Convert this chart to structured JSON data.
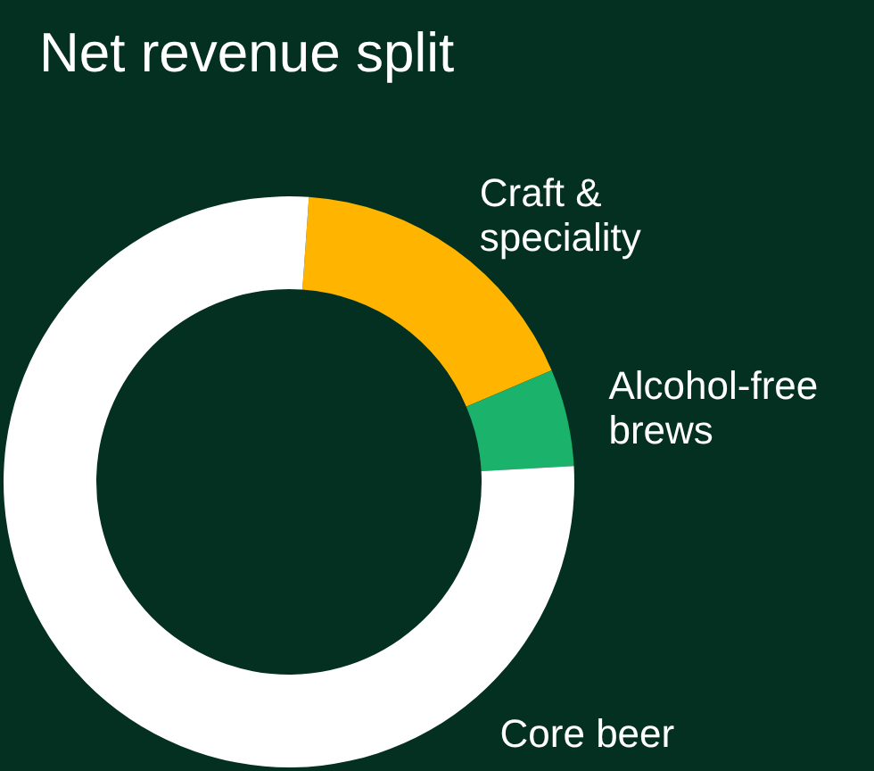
{
  "chart_data": {
    "type": "donut",
    "title": "Net revenue split",
    "categories": [
      "Craft & speciality",
      "Alcohol-free brews",
      "Core beer"
    ],
    "values": [
      17.5,
      5.5,
      77
    ],
    "colors": [
      "#ffb400",
      "#1bb36b",
      "#ffffff"
    ]
  }
}
